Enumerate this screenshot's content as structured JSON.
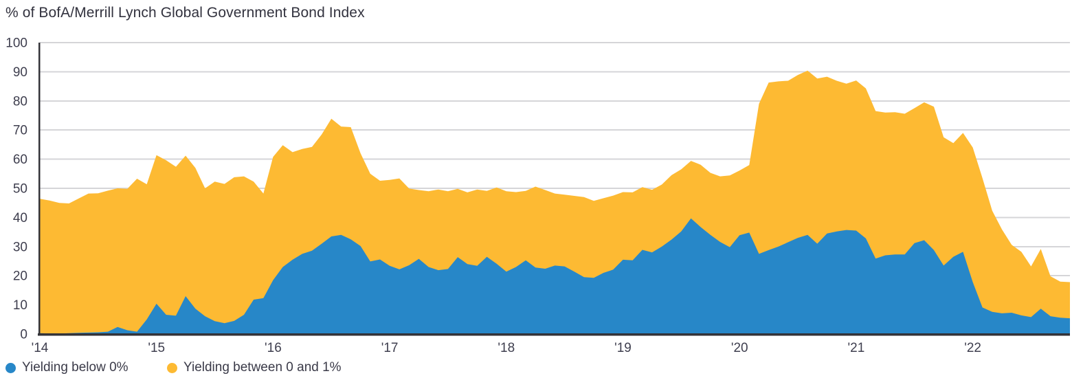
{
  "title": "% of BofA/Merrill Lynch Global Government Bond Index",
  "legend": {
    "items": [
      {
        "label": "Yielding below 0%",
        "color": "#2787C8"
      },
      {
        "label": "Yielding between 0 and 1%",
        "color": "#FDBA33"
      }
    ]
  },
  "colors": {
    "blue_series": "#2787C8",
    "yellow_series": "#FDBA33",
    "gridline": "#d5d5d8",
    "axis": "#333338",
    "tick_label": "#3e3e4e",
    "title_text": "#32323e"
  },
  "chart_data": {
    "type": "area",
    "stacked": true,
    "title": "% of BofA/Merrill Lynch Global Government Bond Index",
    "x_frequency": "monthly",
    "x_start": "2014-01",
    "x_end": "2022-11",
    "x_tick_labels": [
      "'14",
      "'15",
      "'16",
      "'17",
      "'18",
      "'19",
      "'20",
      "'21",
      "'22"
    ],
    "months_per_x_tick": 12,
    "ylim": [
      0,
      100
    ],
    "y_ticks": [
      0,
      10,
      20,
      30,
      40,
      50,
      60,
      70,
      80,
      90,
      100
    ],
    "grid": "horizontal",
    "legend_position": "bottom-left",
    "series": [
      {
        "name": "Yielding below 0%",
        "color": "#2787C8",
        "values": [
          0.3,
          0.2,
          0.2,
          0.3,
          0.4,
          0.5,
          0.6,
          0.8,
          2.4,
          1.3,
          0.8,
          5.0,
          10.4,
          6.6,
          6.3,
          13.0,
          8.7,
          6.1,
          4.4,
          3.7,
          4.5,
          6.6,
          11.8,
          12.3,
          18.5,
          23.0,
          25.5,
          27.5,
          28.6,
          31.0,
          33.5,
          34.0,
          32.5,
          30.2,
          24.9,
          25.6,
          23.4,
          22.2,
          23.6,
          25.8,
          23.0,
          21.9,
          22.3,
          26.4,
          24.0,
          23.4,
          26.5,
          24.1,
          21.4,
          23.0,
          25.3,
          22.8,
          22.4,
          23.5,
          23.2,
          21.4,
          19.5,
          19.3,
          21.0,
          22.1,
          25.5,
          25.3,
          28.9,
          28.0,
          30.0,
          32.4,
          35.2,
          39.7,
          36.7,
          34.0,
          31.6,
          29.8,
          33.9,
          34.8,
          27.5,
          28.8,
          30.0,
          31.5,
          33.0,
          34.0,
          31.0,
          34.5,
          35.2,
          35.7,
          35.5,
          32.8,
          25.9,
          27.0,
          27.3,
          27.3,
          31.2,
          32.2,
          28.8,
          23.5,
          26.5,
          28.2,
          17.8,
          9.1,
          7.6,
          7.1,
          7.3,
          6.4,
          5.8,
          8.7,
          6.1,
          5.6,
          5.4
        ]
      },
      {
        "name": "Yielding between 0 and 1%",
        "color": "#FDBA33",
        "values": [
          46.1,
          45.6,
          44.8,
          44.5,
          46.1,
          47.7,
          47.7,
          48.4,
          47.6,
          48.5,
          52.5,
          46.4,
          51.0,
          53.0,
          51.1,
          48.2,
          48.3,
          43.9,
          47.9,
          47.8,
          49.3,
          47.5,
          40.5,
          35.9,
          42.3,
          41.8,
          36.9,
          36.0,
          35.6,
          37.5,
          40.4,
          37.2,
          38.5,
          31.8,
          30.1,
          27.0,
          29.5,
          31.2,
          26.3,
          23.6,
          26.0,
          27.7,
          26.7,
          23.4,
          24.6,
          26.2,
          22.6,
          26.2,
          27.6,
          25.7,
          23.8,
          27.8,
          27.0,
          24.7,
          24.6,
          26.0,
          27.5,
          26.4,
          25.6,
          25.4,
          23.2,
          23.3,
          21.5,
          21.5,
          21.3,
          22.1,
          21.3,
          19.7,
          21.4,
          21.3,
          22.5,
          24.6,
          22.2,
          23.2,
          51.5,
          57.5,
          56.7,
          55.4,
          55.9,
          56.4,
          56.7,
          53.8,
          51.7,
          50.2,
          51.5,
          51.5,
          50.6,
          49.0,
          48.8,
          48.3,
          46.3,
          47.3,
          49.2,
          44.0,
          39.0,
          40.8,
          46.2,
          44.4,
          34.7,
          28.8,
          23.3,
          21.8,
          17.4,
          20.5,
          13.7,
          12.4,
          12.4
        ]
      }
    ]
  }
}
